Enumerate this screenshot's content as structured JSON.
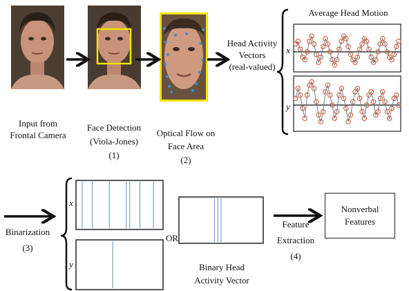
{
  "stage1": {
    "caption_line1": "Input from",
    "caption_line2": "Frontal Camera"
  },
  "stage2": {
    "caption_line1": "Face Detection",
    "caption_line2": "(Viola-Jones)",
    "step": "(1)"
  },
  "stage3": {
    "caption_line1": "Optical Flow on",
    "caption_line2": "Face Area",
    "step": "(2)"
  },
  "vectors": {
    "line1": "Head Activity",
    "line2": "Vectors",
    "line3": "(real-valued)"
  },
  "plot": {
    "title": "Average Head Motion",
    "axis_x": "x",
    "axis_y": "y"
  },
  "binarization": {
    "label": "Binarization",
    "step": "(3)"
  },
  "binary_plots": {
    "axis_x": "x",
    "axis_y": "y"
  },
  "or_label": "OR",
  "binary_vector": {
    "line1": "Binary Head",
    "line2": "Activity Vector"
  },
  "feature_extraction": {
    "line1": "Feature",
    "line2": "Extraction",
    "step": "(4)"
  },
  "output": {
    "line1": "Nonverbal",
    "line2": "Features"
  },
  "colors": {
    "frame_yellow": "#f2e600",
    "circle": "#cc5a36",
    "spike": "#6e9ac6",
    "flow": "#3a8fd0"
  },
  "chart_data": [
    {
      "type": "line",
      "series": [
        {
          "values": [
            0.3,
            0.4,
            0.1,
            -0.2,
            -0.3,
            0.0,
            0.4,
            0.6,
            0.3,
            -0.1,
            -0.4,
            -0.2,
            0.2,
            0.5,
            0.3,
            0.0,
            -0.3,
            -0.5,
            -0.3,
            0.1,
            0.4,
            0.6,
            0.5,
            0.2,
            -0.1,
            -0.3,
            -0.4,
            -0.2,
            0.1,
            0.3,
            0.5,
            0.4,
            0.1,
            -0.2,
            -0.4,
            -0.3,
            0.0,
            0.3,
            0.5,
            0.3,
            0.0,
            -0.2,
            -0.3,
            -0.1,
            0.2,
            0.4
          ]
        }
      ]
    },
    {
      "type": "line",
      "series": [
        {
          "values": [
            0.2,
            0.5,
            0.3,
            -0.1,
            -0.4,
            0.3,
            0.6,
            0.7,
            0.5,
            0.1,
            -0.3,
            -0.5,
            -0.2,
            0.4,
            0.6,
            0.3,
            0.0,
            -0.4,
            -0.2,
            0.3,
            0.5,
            0.2,
            -0.1,
            -0.5,
            -0.3,
            0.1,
            0.4,
            0.5,
            0.2,
            -0.2,
            -0.4,
            0.0,
            0.3,
            0.4,
            0.1,
            -0.3,
            -0.2,
            0.2,
            0.4,
            0.1,
            -0.2,
            -0.4,
            -0.1,
            0.2,
            0.3,
            0.0
          ]
        }
      ]
    },
    {
      "type": "bar",
      "series": [
        {
          "values": [
            0,
            1,
            0,
            0,
            1,
            0,
            0,
            0,
            0,
            1,
            0,
            0,
            0,
            0,
            1,
            1,
            0,
            0,
            1,
            0,
            0,
            0,
            1,
            0,
            0
          ]
        }
      ]
    },
    {
      "type": "bar",
      "series": [
        {
          "values": [
            0,
            0,
            0,
            0,
            0,
            0,
            0,
            0,
            0,
            0,
            1,
            0,
            0,
            0,
            0,
            0,
            0,
            0,
            0,
            0,
            0,
            0,
            0,
            0,
            0
          ]
        }
      ]
    },
    {
      "type": "bar",
      "series": [
        {
          "values": [
            0,
            0,
            0,
            0,
            0,
            0,
            0,
            0,
            0,
            0,
            1,
            1,
            1,
            0,
            0,
            0,
            0,
            0,
            0,
            0,
            0,
            0,
            0,
            0,
            0
          ]
        }
      ]
    }
  ]
}
